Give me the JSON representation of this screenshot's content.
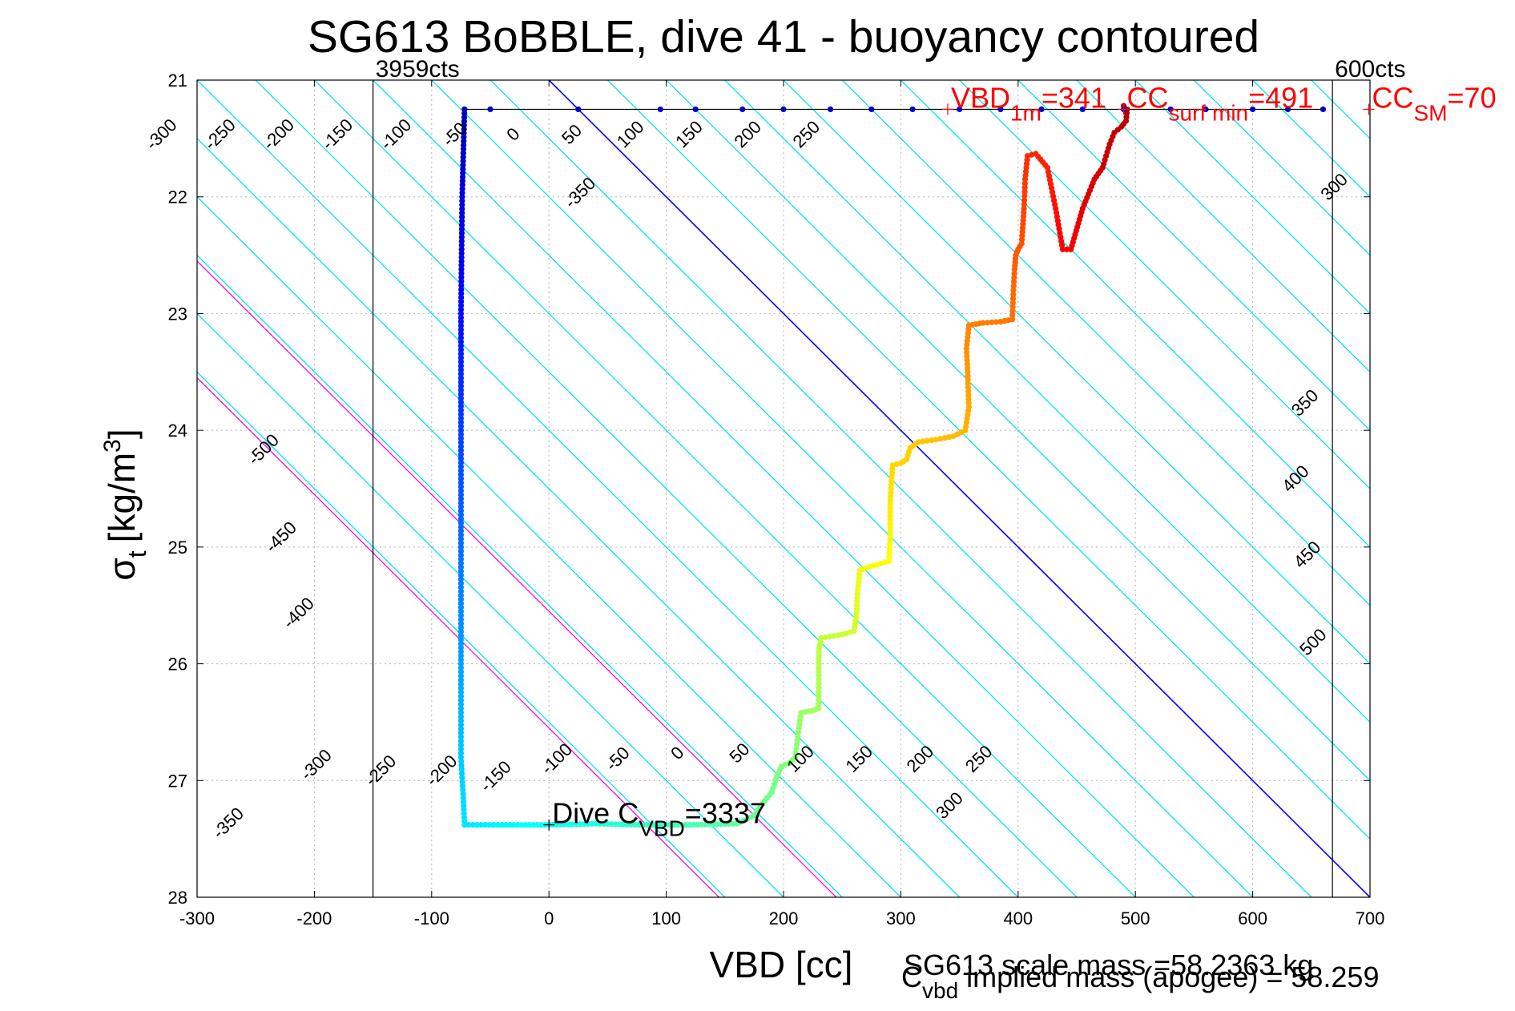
{
  "chart_data": {
    "type": "scatter",
    "title": "SG613 BoBBLE, dive 41 - buoyancy contoured",
    "xlabel": "VBD [cc]",
    "ylabel_base": "σ",
    "ylabel_sub": "t",
    "ylabel_unit": "[kg/m",
    "ylabel_sup": "3",
    "ylabel_close": "]",
    "xlim": [
      -300,
      700
    ],
    "ylim": [
      21,
      28
    ],
    "y_reversed": true,
    "grid": true,
    "xticks": [
      "-300",
      "-200",
      "-100",
      "0",
      "100",
      "200",
      "300",
      "400",
      "500",
      "600",
      "700"
    ],
    "yticks": [
      "21",
      "22",
      "23",
      "24",
      "25",
      "26",
      "27",
      "28"
    ],
    "colors": {
      "axis": "#000000",
      "grid": "#b4b4b4",
      "contour": "#00e5ee",
      "zero_line": "#0000ff",
      "ref_line": "#ff00ff",
      "profile_line": "#000000",
      "annotation": "#ff0000"
    },
    "vbd_limits": [
      {
        "vbd": -150,
        "label": "3959cts"
      },
      {
        "vbd": 668,
        "label": "600cts"
      }
    ],
    "contours": {
      "slope_cc_per_sigma": 100,
      "levels": [
        -550,
        -500,
        -450,
        -400,
        -350,
        -300,
        -250,
        -200,
        -150,
        -100,
        -50,
        0,
        50,
        100,
        150,
        200,
        250,
        300,
        350,
        400,
        450,
        500,
        550,
        600,
        650,
        700,
        750,
        800,
        850
      ],
      "reference_levels": [
        0
      ],
      "magenta_lines": [
        {
          "vbd_at_sigma_28": 145
        },
        {
          "vbd_at_sigma_28": 245
        }
      ],
      "labels_upper": {
        "sigma": 21.5,
        "items": [
          {
            "vbd": -327,
            "text": "-300"
          },
          {
            "vbd": -277,
            "text": "-250"
          },
          {
            "vbd": -227,
            "text": "-200"
          },
          {
            "vbd": -177,
            "text": "-150"
          },
          {
            "vbd": -127,
            "text": "-100"
          },
          {
            "vbd": -77,
            "text": "-50"
          },
          {
            "vbd": -27,
            "text": "0"
          },
          {
            "vbd": 23,
            "text": "50"
          },
          {
            "vbd": 73,
            "text": "100"
          },
          {
            "vbd": 123,
            "text": "150"
          },
          {
            "vbd": 173,
            "text": "200"
          },
          {
            "vbd": 223,
            "text": "250"
          }
        ]
      },
      "labels_other": [
        {
          "vbd": 30,
          "sigma": 22.0,
          "text": "-350"
        },
        {
          "vbd": 673,
          "sigma": 21.95,
          "text": "300"
        },
        {
          "vbd": -240,
          "sigma": 24.2,
          "text": "-500"
        },
        {
          "vbd": -225,
          "sigma": 24.95,
          "text": "-450"
        },
        {
          "vbd": -210,
          "sigma": 25.6,
          "text": "-400"
        },
        {
          "vbd": 648,
          "sigma": 23.8,
          "text": "350"
        },
        {
          "vbd": 640,
          "sigma": 24.45,
          "text": "400"
        },
        {
          "vbd": 650,
          "sigma": 25.1,
          "text": "450"
        },
        {
          "vbd": 655,
          "sigma": 25.85,
          "text": "500"
        },
        {
          "vbd": -270,
          "sigma": 27.4,
          "text": "-350"
        },
        {
          "vbd": -195,
          "sigma": 26.9,
          "text": "-300"
        },
        {
          "vbd": -140,
          "sigma": 26.95,
          "text": "-250"
        },
        {
          "vbd": -88,
          "sigma": 26.95,
          "text": "-200"
        },
        {
          "vbd": -42,
          "sigma": 27.0,
          "text": "-150"
        },
        {
          "vbd": 10,
          "sigma": 26.85,
          "text": "-100"
        },
        {
          "vbd": 62,
          "sigma": 26.85,
          "text": "-50"
        },
        {
          "vbd": 113,
          "sigma": 26.8,
          "text": "0"
        },
        {
          "vbd": 166,
          "sigma": 26.8,
          "text": "50"
        },
        {
          "vbd": 218,
          "sigma": 26.85,
          "text": "100"
        },
        {
          "vbd": 268,
          "sigma": 26.85,
          "text": "150"
        },
        {
          "vbd": 320,
          "sigma": 26.85,
          "text": "200"
        },
        {
          "vbd": 370,
          "sigma": 26.85,
          "text": "250"
        },
        {
          "vbd": 345,
          "sigma": 27.25,
          "text": "300"
        }
      ]
    },
    "profile": {
      "dive_points": [
        [
          -72,
          21.25
        ],
        [
          -74,
          22.0
        ],
        [
          -75,
          23.0
        ],
        [
          -75,
          24.0
        ],
        [
          -75,
          25.0
        ],
        [
          -75,
          26.0
        ],
        [
          -75,
          26.8
        ],
        [
          -73,
          27.15
        ],
        [
          -72,
          27.38
        ],
        [
          -40,
          27.38
        ],
        [
          0,
          27.38
        ],
        [
          40,
          27.37
        ],
        [
          80,
          27.38
        ],
        [
          120,
          27.38
        ],
        [
          160,
          27.37
        ],
        [
          175,
          27.3
        ],
        [
          182,
          27.2
        ],
        [
          190,
          27.1
        ],
        [
          193,
          27.0
        ],
        [
          198,
          26.88
        ],
        [
          205,
          26.85
        ],
        [
          210,
          26.8
        ],
        [
          213,
          26.55
        ],
        [
          215,
          26.42
        ],
        [
          225,
          26.4
        ],
        [
          230,
          26.38
        ],
        [
          230,
          26.1
        ],
        [
          230,
          25.9
        ],
        [
          232,
          25.78
        ],
        [
          250,
          25.75
        ],
        [
          260,
          25.72
        ],
        [
          262,
          25.6
        ],
        [
          263,
          25.4
        ],
        [
          265,
          25.2
        ],
        [
          270,
          25.18
        ],
        [
          280,
          25.15
        ],
        [
          290,
          25.12
        ],
        [
          291,
          24.9
        ],
        [
          291,
          24.6
        ],
        [
          293,
          24.3
        ],
        [
          300,
          24.28
        ],
        [
          305,
          24.25
        ],
        [
          308,
          24.15
        ],
        [
          315,
          24.1
        ],
        [
          330,
          24.08
        ],
        [
          345,
          24.05
        ],
        [
          355,
          24.0
        ],
        [
          358,
          23.8
        ],
        [
          357,
          23.5
        ],
        [
          356,
          23.3
        ],
        [
          358,
          23.1
        ],
        [
          370,
          23.08
        ],
        [
          385,
          23.07
        ],
        [
          395,
          23.05
        ],
        [
          396,
          22.8
        ],
        [
          397,
          22.62
        ],
        [
          398,
          22.5
        ],
        [
          400,
          22.45
        ],
        [
          403,
          22.4
        ],
        [
          405,
          22.1
        ],
        [
          406,
          21.85
        ],
        [
          408,
          21.65
        ],
        [
          415,
          21.63
        ],
        [
          425,
          21.75
        ],
        [
          432,
          22.1
        ],
        [
          438,
          22.45
        ],
        [
          445,
          22.45
        ],
        [
          455,
          22.1
        ],
        [
          465,
          21.85
        ],
        [
          472,
          21.75
        ],
        [
          478,
          21.55
        ],
        [
          482,
          21.45
        ],
        [
          488,
          21.4
        ],
        [
          492,
          21.35
        ],
        [
          493,
          21.25
        ],
        [
          490,
          21.22
        ]
      ],
      "climb_points": [
        [
          490,
          21.25
        ],
        [
          455,
          21.25
        ],
        [
          420,
          21.25
        ],
        [
          385,
          21.25
        ],
        [
          350,
          21.25
        ],
        [
          310,
          21.25
        ],
        [
          275,
          21.25
        ],
        [
          240,
          21.25
        ],
        [
          200,
          21.25
        ],
        [
          165,
          21.25
        ],
        [
          125,
          21.25
        ],
        [
          95,
          21.25
        ],
        [
          25,
          21.25
        ],
        [
          -50,
          21.25
        ],
        [
          -72,
          21.25
        ],
        [
          530,
          21.25
        ],
        [
          560,
          21.25
        ],
        [
          600,
          21.25
        ],
        [
          630,
          21.25
        ],
        [
          660,
          21.25
        ]
      ]
    },
    "annotations": [
      {
        "vbd": 340,
        "sigma": 21.25,
        "base": "VBD",
        "sub": "1m",
        "rest": "=341",
        "color": "#ff0000"
      },
      {
        "vbd": 490,
        "sigma": 21.25,
        "base": "CC",
        "sub": "surf min",
        "rest": "=491",
        "color": "#ff0000"
      },
      {
        "vbd": 699,
        "sigma": 21.25,
        "base": "CC",
        "sub": "SM",
        "rest": "=70",
        "color": "#ff0000"
      },
      {
        "vbd": 0,
        "sigma": 27.38,
        "base": "Dive C",
        "sub": "VBD",
        "rest": "=3337",
        "color": "#000000"
      }
    ],
    "footer_lines": [
      "SG613 scale mass =58.2363 kg",
      {
        "base": "C",
        "sub": "vbd",
        "rest": " implied mass (apogee) = 58.259"
      }
    ]
  }
}
